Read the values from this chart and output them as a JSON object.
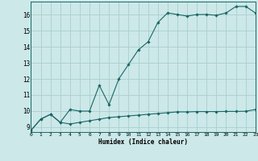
{
  "xlabel": "Humidex (Indice chaleur)",
  "ylabel": "",
  "background_color": "#cce8e8",
  "line_color": "#1a6666",
  "grid_color": "#aacece",
  "xlim": [
    0,
    23
  ],
  "ylim": [
    8.7,
    16.8
  ],
  "x_ticks": [
    0,
    1,
    2,
    3,
    4,
    5,
    6,
    7,
    8,
    9,
    10,
    11,
    12,
    13,
    14,
    15,
    16,
    17,
    18,
    19,
    20,
    21,
    22,
    23
  ],
  "y_ticks": [
    9,
    10,
    11,
    12,
    13,
    14,
    15,
    16
  ],
  "line1_x": [
    0,
    1,
    2,
    3,
    4,
    5,
    6,
    7,
    8,
    9,
    10,
    11,
    12,
    13,
    14,
    15,
    16,
    17,
    18,
    19,
    20,
    21,
    22,
    23
  ],
  "line1_y": [
    8.8,
    9.5,
    9.8,
    9.3,
    10.1,
    10.0,
    10.0,
    11.6,
    10.4,
    12.0,
    12.9,
    13.8,
    14.3,
    15.5,
    16.1,
    16.0,
    15.9,
    16.0,
    16.0,
    15.95,
    16.1,
    16.5,
    16.5,
    16.1
  ],
  "line2_x": [
    0,
    1,
    2,
    3,
    4,
    5,
    6,
    7,
    8,
    9,
    10,
    11,
    12,
    13,
    14,
    15,
    16,
    17,
    18,
    19,
    20,
    21,
    22,
    23
  ],
  "line2_y": [
    8.8,
    9.5,
    9.8,
    9.3,
    9.2,
    9.3,
    9.4,
    9.5,
    9.6,
    9.65,
    9.7,
    9.75,
    9.8,
    9.85,
    9.9,
    9.95,
    9.95,
    9.97,
    9.97,
    9.97,
    9.98,
    9.98,
    9.99,
    10.1
  ]
}
